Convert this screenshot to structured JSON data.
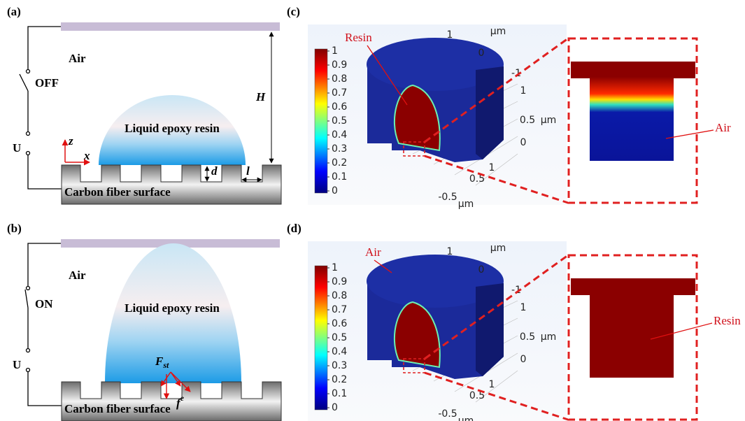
{
  "panels": [
    {
      "label": "(a)",
      "air": "Air",
      "switch": "OFF",
      "source": "U",
      "height": "H",
      "axis_z": "z",
      "axis_x": "x",
      "drop": "Liquid epoxy resin",
      "depth": "d",
      "width": "l",
      "surface": "Carbon fiber surface"
    },
    {
      "label": "(b)",
      "air": "Air",
      "switch": "ON",
      "source": "U",
      "drop": "Liquid epoxy resin",
      "force_st": {
        "main": "F",
        "sub": "st"
      },
      "force_e": {
        "main": "f",
        "sup": "e"
      },
      "surface": "Carbon fiber surface"
    },
    {
      "label": "(c)",
      "colorbar": [
        "1",
        "0.9",
        "0.8",
        "0.7",
        "0.6",
        "0.5",
        "0.4",
        "0.3",
        "0.2",
        "0.1",
        "0"
      ],
      "axis_labels": [
        "1",
        "μm",
        "0",
        "-1",
        "1",
        "0.5",
        "μm",
        "0",
        "1",
        "0.5",
        "-0.5",
        "μm"
      ],
      "callout_3d": "Resin",
      "callout_zoom": "Air"
    },
    {
      "label": "(d)",
      "colorbar": [
        "1",
        "0.9",
        "0.8",
        "0.7",
        "0.6",
        "0.5",
        "0.4",
        "0.3",
        "0.2",
        "0.1",
        "0"
      ],
      "axis_labels": [
        "1",
        "μm",
        "0",
        "-1",
        "1",
        "0.5",
        "μm",
        "0",
        "1",
        "0.5",
        "-0.5",
        "μm"
      ],
      "callout_3d": "Air",
      "callout_zoom": "Resin"
    }
  ]
}
